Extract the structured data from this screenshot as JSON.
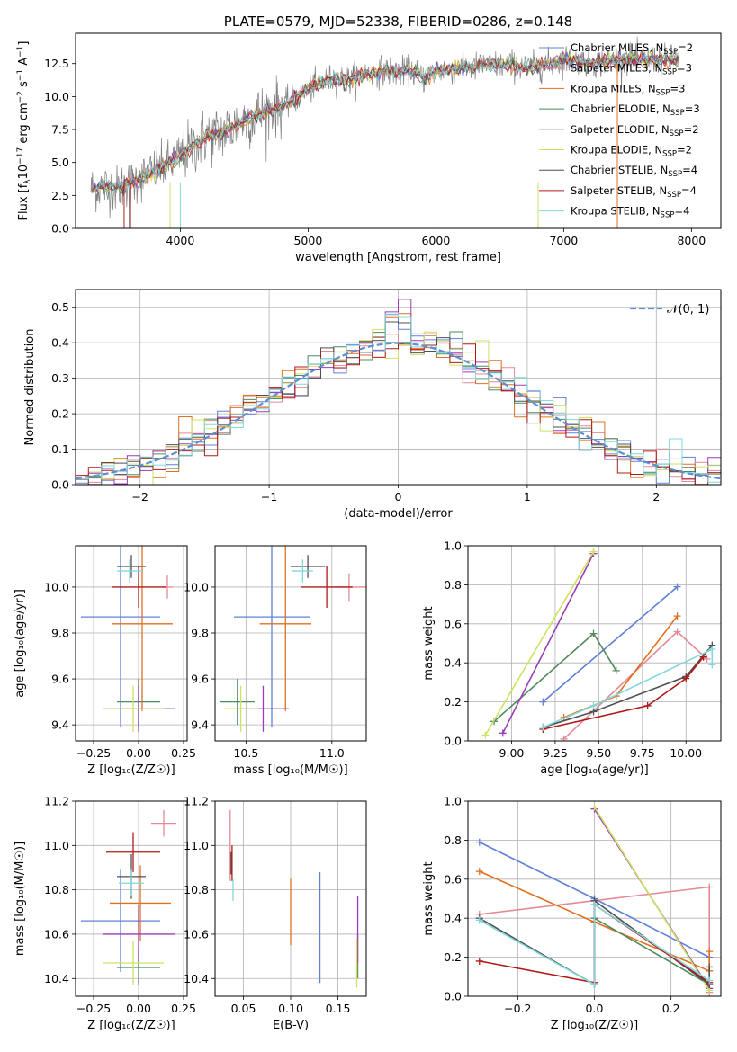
{
  "colors": {
    "Chabrier MILES": "#6080d8",
    "Salpeter MILES": "#e48a96",
    "Kroupa MILES": "#e07020",
    "Chabrier ELODIE": "#4e8a5c",
    "Salpeter ELODIE": "#9a3cb8",
    "Kroupa ELODIE": "#d0e060",
    "Chabrier STELIB": "#505050",
    "Salpeter STELIB": "#b01a1a",
    "Kroupa STELIB": "#7fd8dc"
  },
  "chart_data": [
    {
      "id": "spectrum",
      "type": "line",
      "title": "PLATE=0579, MJD=52338, FIBERID=0286, z=0.148",
      "xlabel": "wavelength [Angstrom, rest frame]",
      "ylabel": "Flux [f$_\\lambda$10$^{-17}$ erg cm$^{-2}$ s$^{-1}$ A$^{-1}$]",
      "xlim": [
        3180,
        8230
      ],
      "ylim": [
        0,
        14.8
      ],
      "xticks": [
        4000,
        5000,
        6000,
        7000,
        8000
      ],
      "yticks": [
        0.0,
        2.5,
        5.0,
        7.5,
        10.0,
        12.5
      ],
      "grid": false,
      "legend_position": "top-right",
      "legend": [
        {
          "label": "Chabrier MILES, N",
          "sub": "SSP",
          "tail": "=2"
        },
        {
          "label": "Salpeter MILES, N",
          "sub": "SSP",
          "tail": "=3"
        },
        {
          "label": "Kroupa MILES, N",
          "sub": "SSP",
          "tail": "=3"
        },
        {
          "label": "Chabrier ELODIE, N",
          "sub": "SSP",
          "tail": "=3"
        },
        {
          "label": "Salpeter ELODIE, N",
          "sub": "SSP",
          "tail": "=2"
        },
        {
          "label": "Kroupa ELODIE, N",
          "sub": "SSP",
          "tail": "=2"
        },
        {
          "label": "Chabrier STELIB, N",
          "sub": "SSP",
          "tail": "=4"
        },
        {
          "label": "Salpeter STELIB, N",
          "sub": "SSP",
          "tail": "=4"
        },
        {
          "label": "Kroupa STELIB, N",
          "sub": "SSP",
          "tail": "=4"
        }
      ],
      "continuum": {
        "x": [
          3300,
          3400,
          3500,
          3600,
          3700,
          3800,
          3900,
          4000,
          4100,
          4200,
          4300,
          4400,
          4500,
          4600,
          4700,
          4800,
          4900,
          5000,
          5100,
          5200,
          5300,
          5400,
          5500,
          5600,
          5700,
          5800,
          5900,
          6000,
          6100,
          6200,
          6300,
          6400,
          6500,
          6600,
          6700,
          6800,
          6900,
          7000,
          7100,
          7200,
          7300,
          7400
        ],
        "y": [
          3.0,
          3.2,
          3.0,
          3.5,
          3.8,
          4.4,
          4.8,
          5.5,
          6.2,
          7.0,
          7.2,
          7.6,
          8.2,
          8.6,
          9.0,
          9.3,
          9.8,
          10.6,
          11.0,
          11.4,
          11.2,
          11.6,
          11.8,
          12.0,
          11.8,
          12.0,
          11.4,
          12.0,
          12.0,
          12.2,
          12.2,
          12.4,
          12.4,
          12.4,
          12.2,
          12.3,
          12.5,
          12.8,
          12.7,
          12.5,
          12.6,
          12.8
        ]
      },
      "data_range": [
        3300,
        7900
      ]
    },
    {
      "id": "residuals",
      "type": "histogram",
      "xlabel": "(data-model)/error",
      "ylabel": "Normed distribution",
      "xlim": [
        -2.5,
        2.5
      ],
      "ylim": [
        0,
        0.55
      ],
      "xticks": [
        -2,
        -1,
        0,
        1,
        2
      ],
      "yticks": [
        0.0,
        0.1,
        0.2,
        0.3,
        0.4,
        0.5
      ],
      "grid": true,
      "legend": [
        {
          "label": "𝒩(0, 1)"
        }
      ],
      "legend_position": "top-right",
      "bin_width": 0.1,
      "reference_curve": "normal(0,1)"
    },
    {
      "id": "age_vs_Z",
      "type": "errorbar",
      "xlabel": "Z [log₁₀(Z/Z☉)]",
      "ylabel": "age  [log₁₀(age/yr)]",
      "xlim": [
        -0.35,
        0.27
      ],
      "ylim": [
        9.33,
        10.18
      ],
      "xticks": [
        -0.25,
        0.0,
        0.25
      ],
      "xticklabels": [
        "−0.25",
        "0.00",
        "0.25"
      ],
      "yticks": [
        9.4,
        9.6,
        9.8,
        10.0
      ],
      "grid": true,
      "points": [
        {
          "model": "Chabrier MILES",
          "x": -0.1,
          "xerr": 0.22,
          "y": 9.87,
          "yerr": 0.48
        },
        {
          "model": "Salpeter MILES",
          "x": 0.16,
          "xerr": 0.03,
          "y": 10.0,
          "yerr": 0.05
        },
        {
          "model": "Kroupa MILES",
          "x": 0.02,
          "xerr": 0.17,
          "y": 9.84,
          "yerr": 0.38
        },
        {
          "model": "Chabrier ELODIE",
          "x": 0.0,
          "xerr": 0.12,
          "y": 9.5,
          "yerr": 0.1
        },
        {
          "model": "Salpeter ELODIE",
          "x": 0.0,
          "xerr": 0.2,
          "y": 9.47,
          "yerr": 0.1
        },
        {
          "model": "Kroupa ELODIE",
          "x": -0.03,
          "xerr": 0.17,
          "y": 9.47,
          "yerr": 0.1
        },
        {
          "model": "Chabrier STELIB",
          "x": -0.04,
          "xerr": 0.08,
          "y": 10.09,
          "yerr": 0.05
        },
        {
          "model": "Salpeter STELIB",
          "x": 0.0,
          "xerr": 0.15,
          "y": 10.0,
          "yerr": 0.09
        },
        {
          "model": "Kroupa STELIB",
          "x": -0.05,
          "xerr": 0.07,
          "y": 10.07,
          "yerr": 0.05
        }
      ]
    },
    {
      "id": "age_vs_mass",
      "type": "errorbar",
      "xlabel": "mass [log₁₀(M/M☉)]",
      "ylabel": "",
      "xlim": [
        10.32,
        11.2
      ],
      "ylim": [
        9.33,
        10.18
      ],
      "xticks": [
        10.5,
        11.0
      ],
      "yticks": [
        9.4,
        9.6,
        9.8,
        10.0
      ],
      "grid": true,
      "points": [
        {
          "model": "Chabrier MILES",
          "x": 10.65,
          "xerr": 0.22,
          "y": 9.87,
          "yerr": 0.48
        },
        {
          "model": "Salpeter MILES",
          "x": 11.1,
          "xerr": 0.1,
          "y": 10.0,
          "yerr": 0.06
        },
        {
          "model": "Kroupa MILES",
          "x": 10.73,
          "xerr": 0.15,
          "y": 9.84,
          "yerr": 0.38
        },
        {
          "model": "Chabrier ELODIE",
          "x": 10.45,
          "xerr": 0.1,
          "y": 9.5,
          "yerr": 0.1
        },
        {
          "model": "Salpeter ELODIE",
          "x": 10.6,
          "xerr": 0.15,
          "y": 9.47,
          "yerr": 0.1
        },
        {
          "model": "Kroupa ELODIE",
          "x": 10.47,
          "xerr": 0.1,
          "y": 9.47,
          "yerr": 0.1
        },
        {
          "model": "Chabrier STELIB",
          "x": 10.86,
          "xerr": 0.1,
          "y": 10.09,
          "yerr": 0.05
        },
        {
          "model": "Salpeter STELIB",
          "x": 10.97,
          "xerr": 0.15,
          "y": 10.0,
          "yerr": 0.09
        },
        {
          "model": "Kroupa STELIB",
          "x": 10.83,
          "xerr": 0.06,
          "y": 10.07,
          "yerr": 0.05
        }
      ]
    },
    {
      "id": "weight_vs_age",
      "type": "line",
      "xlabel": "age  [log₁₀(age/yr)]",
      "ylabel": "mass weight",
      "xlim": [
        8.75,
        10.2
      ],
      "ylim": [
        0,
        1.0
      ],
      "xticks": [
        9.0,
        9.25,
        9.5,
        9.75,
        10.0
      ],
      "xticklabels": [
        "9.00",
        "9.25",
        "9.50",
        "9.75",
        "10.00"
      ],
      "yticks": [
        0.0,
        0.2,
        0.4,
        0.6,
        0.8,
        1.0
      ],
      "grid": true,
      "series": [
        {
          "model": "Chabrier MILES",
          "x": [
            9.18,
            9.95
          ],
          "y": [
            0.2,
            0.79
          ]
        },
        {
          "model": "Salpeter MILES",
          "x": [
            9.3,
            9.95,
            10.12
          ],
          "y": [
            0.01,
            0.56,
            0.42
          ]
        },
        {
          "model": "Kroupa MILES",
          "x": [
            9.3,
            9.6,
            9.95
          ],
          "y": [
            0.12,
            0.23,
            0.64
          ]
        },
        {
          "model": "Chabrier ELODIE",
          "x": [
            8.9,
            9.47,
            9.6
          ],
          "y": [
            0.1,
            0.55,
            0.36
          ]
        },
        {
          "model": "Salpeter ELODIE",
          "x": [
            8.95,
            9.47
          ],
          "y": [
            0.04,
            0.96
          ]
        },
        {
          "model": "Kroupa ELODIE",
          "x": [
            8.85,
            9.47
          ],
          "y": [
            0.03,
            0.97
          ]
        },
        {
          "model": "Chabrier STELIB",
          "x": [
            9.18,
            9.47,
            10.0,
            10.15
          ],
          "y": [
            0.07,
            0.15,
            0.33,
            0.49
          ]
        },
        {
          "model": "Salpeter STELIB",
          "x": [
            9.18,
            9.78,
            10.0,
            10.1
          ],
          "y": [
            0.06,
            0.18,
            0.32,
            0.43
          ]
        },
        {
          "model": "Kroupa STELIB",
          "x": [
            9.18,
            9.47,
            10.15,
            10.15
          ],
          "y": [
            0.07,
            0.18,
            0.47,
            0.39
          ]
        }
      ]
    },
    {
      "id": "mass_vs_Z",
      "type": "errorbar",
      "xlabel": "Z [log₁₀(Z/Z☉)]",
      "ylabel": "mass [log₁₀(M/M☉)]",
      "xlim": [
        -0.35,
        0.27
      ],
      "ylim": [
        10.32,
        11.2
      ],
      "xticks": [
        -0.25,
        0.0,
        0.25
      ],
      "xticklabels": [
        "−0.25",
        "0.00",
        "0.25"
      ],
      "yticks": [
        10.4,
        10.6,
        10.8,
        11.0,
        11.2
      ],
      "grid": true,
      "points": [
        {
          "model": "Chabrier MILES",
          "x": -0.1,
          "xerr": 0.22,
          "y": 10.66,
          "yerr": 0.23
        },
        {
          "model": "Salpeter MILES",
          "x": 0.14,
          "xerr": 0.07,
          "y": 11.1,
          "yerr": 0.06
        },
        {
          "model": "Kroupa MILES",
          "x": 0.01,
          "xerr": 0.17,
          "y": 10.74,
          "yerr": 0.17
        },
        {
          "model": "Chabrier ELODIE",
          "x": 0.0,
          "xerr": 0.12,
          "y": 10.45,
          "yerr": 0.08
        },
        {
          "model": "Salpeter ELODIE",
          "x": 0.0,
          "xerr": 0.2,
          "y": 10.6,
          "yerr": 0.13
        },
        {
          "model": "Kroupa ELODIE",
          "x": -0.03,
          "xerr": 0.17,
          "y": 10.47,
          "yerr": 0.1
        },
        {
          "model": "Chabrier STELIB",
          "x": -0.04,
          "xerr": 0.08,
          "y": 10.86,
          "yerr": 0.1
        },
        {
          "model": "Salpeter STELIB",
          "x": -0.03,
          "xerr": 0.15,
          "y": 10.97,
          "yerr": 0.09
        },
        {
          "model": "Kroupa STELIB",
          "x": -0.04,
          "xerr": 0.07,
          "y": 10.83,
          "yerr": 0.06
        }
      ]
    },
    {
      "id": "mass_vs_EBV",
      "type": "errorbar",
      "xlabel": "E(B-V)",
      "ylabel": "",
      "xlim": [
        0.02,
        0.18
      ],
      "ylim": [
        10.32,
        11.2
      ],
      "xticks": [
        0.05,
        0.1,
        0.15
      ],
      "xticklabels": [
        "0.05",
        "0.10",
        "0.15"
      ],
      "yticks": [
        10.4,
        10.6,
        10.8,
        11.0,
        11.2
      ],
      "grid": true,
      "points": [
        {
          "model": "Chabrier MILES",
          "x": 0.131,
          "xerr": 0.0,
          "y": 10.63,
          "yerr": 0.25
        },
        {
          "model": "Salpeter MILES",
          "x": 0.036,
          "xerr": 0.0,
          "y": 11.0,
          "yerr": 0.16
        },
        {
          "model": "Kroupa MILES",
          "x": 0.1,
          "xerr": 0.0,
          "y": 10.7,
          "yerr": 0.15
        },
        {
          "model": "Chabrier ELODIE",
          "x": 0.171,
          "xerr": 0.0,
          "y": 10.5,
          "yerr": 0.1
        },
        {
          "model": "Salpeter ELODIE",
          "x": 0.171,
          "xerr": 0.0,
          "y": 10.62,
          "yerr": 0.15
        },
        {
          "model": "Kroupa ELODIE",
          "x": 0.17,
          "xerr": 0.0,
          "y": 10.47,
          "yerr": 0.11
        },
        {
          "model": "Chabrier STELIB",
          "x": 0.037,
          "xerr": 0.0,
          "y": 10.92,
          "yerr": 0.05
        },
        {
          "model": "Salpeter STELIB",
          "x": 0.038,
          "xerr": 0.0,
          "y": 10.92,
          "yerr": 0.08
        },
        {
          "model": "Kroupa STELIB",
          "x": 0.039,
          "xerr": 0.0,
          "y": 10.8,
          "yerr": 0.05
        }
      ]
    },
    {
      "id": "weight_vs_Z",
      "type": "line",
      "xlabel": "Z [log₁₀(Z/Z☉)]",
      "ylabel": "mass weight",
      "xlim": [
        -0.33,
        0.33
      ],
      "ylim": [
        0,
        1.0
      ],
      "xticks": [
        -0.2,
        0.0,
        0.2
      ],
      "xticklabels": [
        "−0.2",
        "0.0",
        "0.2"
      ],
      "yticks": [
        0.0,
        0.2,
        0.4,
        0.6,
        0.8,
        1.0
      ],
      "grid": true,
      "series": [
        {
          "model": "Chabrier MILES",
          "x": [
            -0.3,
            0.0,
            0.3
          ],
          "y": [
            0.79,
            0.5,
            0.2
          ]
        },
        {
          "model": "Salpeter MILES",
          "x": [
            -0.3,
            0.3,
            0.3
          ],
          "y": [
            0.42,
            0.56,
            0.02
          ]
        },
        {
          "model": "Kroupa MILES",
          "x": [
            -0.3,
            0.0,
            0.3,
            0.3
          ],
          "y": [
            0.64,
            0.38,
            0.13,
            0.23
          ]
        },
        {
          "model": "Chabrier ELODIE",
          "x": [
            0.0,
            0.0,
            0.3
          ],
          "y": [
            0.06,
            0.4,
            0.06
          ]
        },
        {
          "model": "Salpeter ELODIE",
          "x": [
            0.0,
            0.3
          ],
          "y": [
            0.96,
            0.04
          ]
        },
        {
          "model": "Kroupa ELODIE",
          "x": [
            0.0,
            0.3
          ],
          "y": [
            0.97,
            0.03
          ]
        },
        {
          "model": "Chabrier STELIB",
          "x": [
            -0.3,
            0.0,
            0.0,
            0.3,
            0.3
          ],
          "y": [
            0.4,
            0.06,
            0.49,
            0.06,
            0.15
          ]
        },
        {
          "model": "Salpeter STELIB",
          "x": [
            -0.3,
            0.0,
            0.0,
            0.3
          ],
          "y": [
            0.18,
            0.07,
            0.47,
            0.07
          ]
        },
        {
          "model": "Kroupa STELIB",
          "x": [
            -0.3,
            0.0,
            0.0,
            0.3
          ],
          "y": [
            0.39,
            0.06,
            0.47,
            0.08
          ]
        }
      ]
    }
  ]
}
